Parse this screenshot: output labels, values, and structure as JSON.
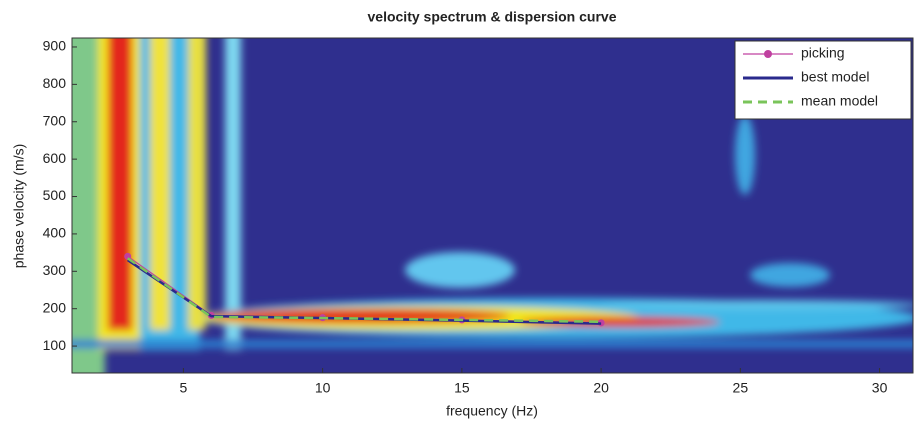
{
  "chart_data": {
    "type": "line",
    "title": "velocity spectrum & dispersion curve",
    "x_label": "frequency (Hz)",
    "y_label": "phase velocity (m/s)",
    "x": [
      3,
      6,
      10,
      15,
      20
    ],
    "series": [
      {
        "name": "picking",
        "color": "#c040a0",
        "values": [
          340,
          182,
          176,
          170,
          162
        ]
      },
      {
        "name": "best model",
        "color": "#2a2a8c",
        "values": [
          330,
          180,
          175,
          168,
          160
        ]
      },
      {
        "name": "mean model",
        "color": "#7ac45a",
        "values": [
          335,
          178,
          175,
          170,
          165
        ]
      }
    ],
    "xlim": [
      1,
      31.2
    ],
    "ylim": [
      28,
      924
    ],
    "xticks": [
      5,
      10,
      15,
      20,
      25,
      30
    ],
    "yticks": [
      100,
      200,
      300,
      400,
      500,
      600,
      700,
      800,
      900
    ],
    "legend": "upper right"
  }
}
